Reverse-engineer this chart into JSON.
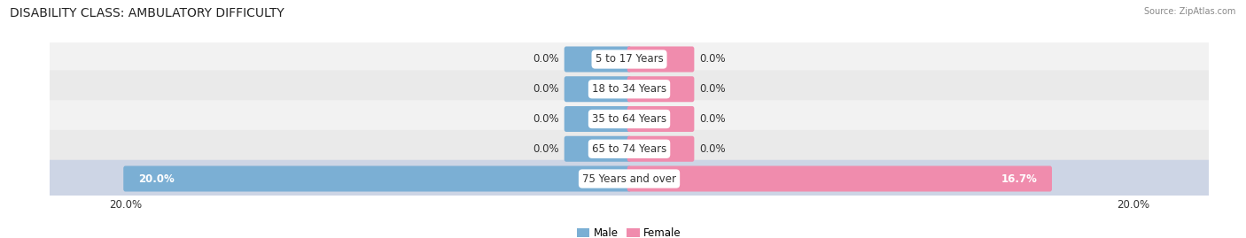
{
  "title": "DISABILITY CLASS: AMBULATORY DIFFICULTY",
  "source": "Source: ZipAtlas.com",
  "categories": [
    "5 to 17 Years",
    "18 to 34 Years",
    "35 to 64 Years",
    "65 to 74 Years",
    "75 Years and over"
  ],
  "male_values": [
    0.0,
    0.0,
    0.0,
    0.0,
    20.0
  ],
  "female_values": [
    0.0,
    0.0,
    0.0,
    0.0,
    16.7
  ],
  "max_val": 20.0,
  "male_color": "#7bafd4",
  "female_color": "#f08cad",
  "row_bg_colors": [
    "#f0f0f0",
    "#e8e8e8",
    "#f0f0f0",
    "#e8e8e8",
    "#d0d8e8"
  ],
  "label_color": "#333333",
  "title_fontsize": 10,
  "label_fontsize": 8.5,
  "tick_fontsize": 8.5,
  "bar_height": 0.7,
  "zero_bar_width": 2.5,
  "background_color": "#ffffff"
}
